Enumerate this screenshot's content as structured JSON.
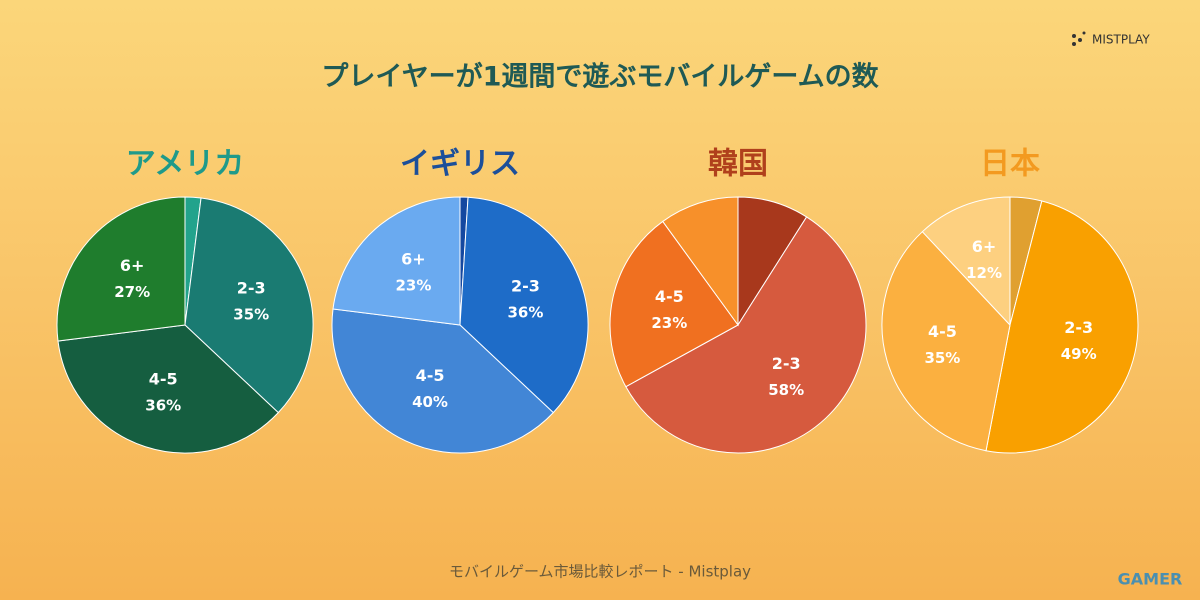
{
  "header": {
    "title": "プレイヤーが1週間で遊ぶモバイルゲームの数",
    "brand": "MISTPLAY"
  },
  "footer": {
    "text": "モバイルゲーム市場比較レポート - Mistplay",
    "watermark": "GAMER"
  },
  "chart_data": [
    {
      "type": "pie",
      "title": "アメリカ",
      "title_color": "#1f9a8a",
      "categories": [
        null,
        "2-3",
        "4-5",
        "6+"
      ],
      "values": [
        2,
        35,
        36,
        27
      ],
      "value_labels": [
        null,
        "35%",
        "36%",
        "27%"
      ],
      "colors": [
        "#22a38c",
        "#1a7b72",
        "#155e40",
        "#1f7d2d"
      ]
    },
    {
      "type": "pie",
      "title": "イギリス",
      "title_color": "#1c4f9a",
      "categories": [
        null,
        "2-3",
        "4-5",
        "6+"
      ],
      "values": [
        1,
        36,
        40,
        23
      ],
      "value_labels": [
        null,
        "36%",
        "40%",
        "23%"
      ],
      "colors": [
        "#1448a0",
        "#1e6cc8",
        "#4286d6",
        "#6aaaf0"
      ]
    },
    {
      "type": "pie",
      "title": "韓国",
      "title_color": "#b0401c",
      "categories": [
        null,
        "2-3",
        "4-5",
        null
      ],
      "values": [
        9,
        58,
        23,
        10
      ],
      "value_labels": [
        null,
        "58%",
        "23%",
        null
      ],
      "colors": [
        "#a8381c",
        "#d65a3e",
        "#f07020",
        "#f7902a"
      ]
    },
    {
      "type": "pie",
      "title": "日本",
      "title_color": "#f39a20",
      "categories": [
        null,
        "2-3",
        "4-5",
        "6+"
      ],
      "values": [
        4,
        49,
        35,
        12
      ],
      "value_labels": [
        null,
        "49%",
        "35%",
        "12%"
      ],
      "colors": [
        "#e0a030",
        "#f9a000",
        "#fbb040",
        "#fdd080"
      ]
    }
  ]
}
